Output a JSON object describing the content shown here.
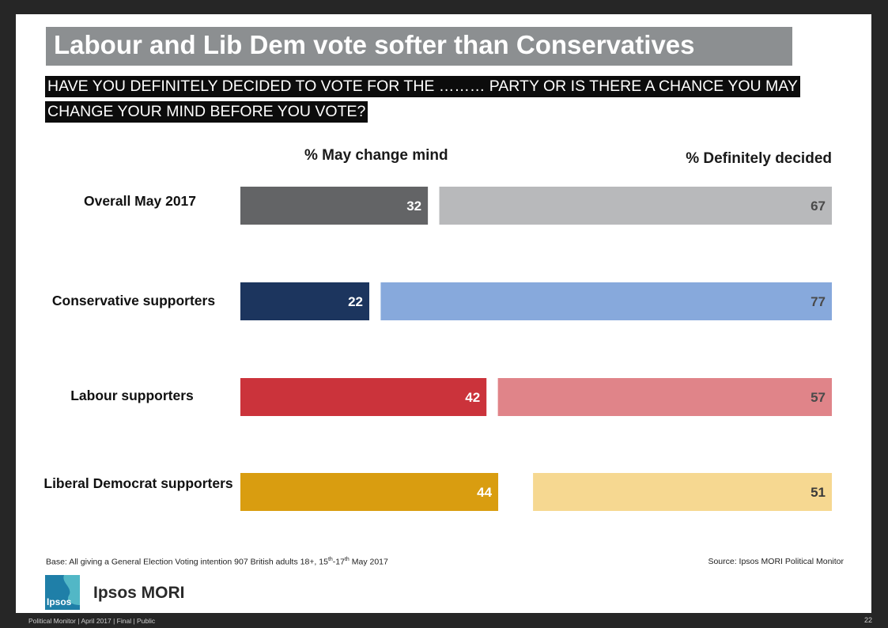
{
  "title": "Labour and Lib Dem vote softer than Conservatives",
  "question_line1": "HAVE YOU DEFINITELY DECIDED TO VOTE FOR THE ……… PARTY OR IS THERE A CHANCE YOU MAY",
  "question_line2": "CHANGE YOUR MIND BEFORE YOU VOTE?",
  "chart_data": {
    "type": "bar",
    "orientation": "horizontal-stacked",
    "categories": [
      "Overall May 2017",
      "Conservative supporters",
      "Labour supporters",
      "Liberal Democrat supporters"
    ],
    "series": [
      {
        "name": "% May change mind",
        "values": [
          32,
          22,
          42,
          44
        ],
        "colors": [
          "#636466",
          "#1c355e",
          "#cb333b",
          "#d99d10"
        ]
      },
      {
        "name": "% Definitely decided",
        "values": [
          67,
          77,
          57,
          51
        ],
        "colors": [
          "#b8b9bb",
          "#87a9dc",
          "#e08489",
          "#f6d891"
        ]
      }
    ],
    "xlim": [
      0,
      100
    ],
    "grid": false
  },
  "base_prefix": "Base: All giving a General Election Voting intention 907 British adults 18+, 15",
  "base_sup1": "th",
  "base_mid": "-17",
  "base_sup2": "th",
  "base_suffix": " May 2017",
  "source": "Source: Ipsos MORI Political Monitor",
  "logo_text": "Ipsos",
  "brand": "Ipsos MORI",
  "footer": "Political Monitor | April 2017 | Final | Public",
  "page_number": "22"
}
